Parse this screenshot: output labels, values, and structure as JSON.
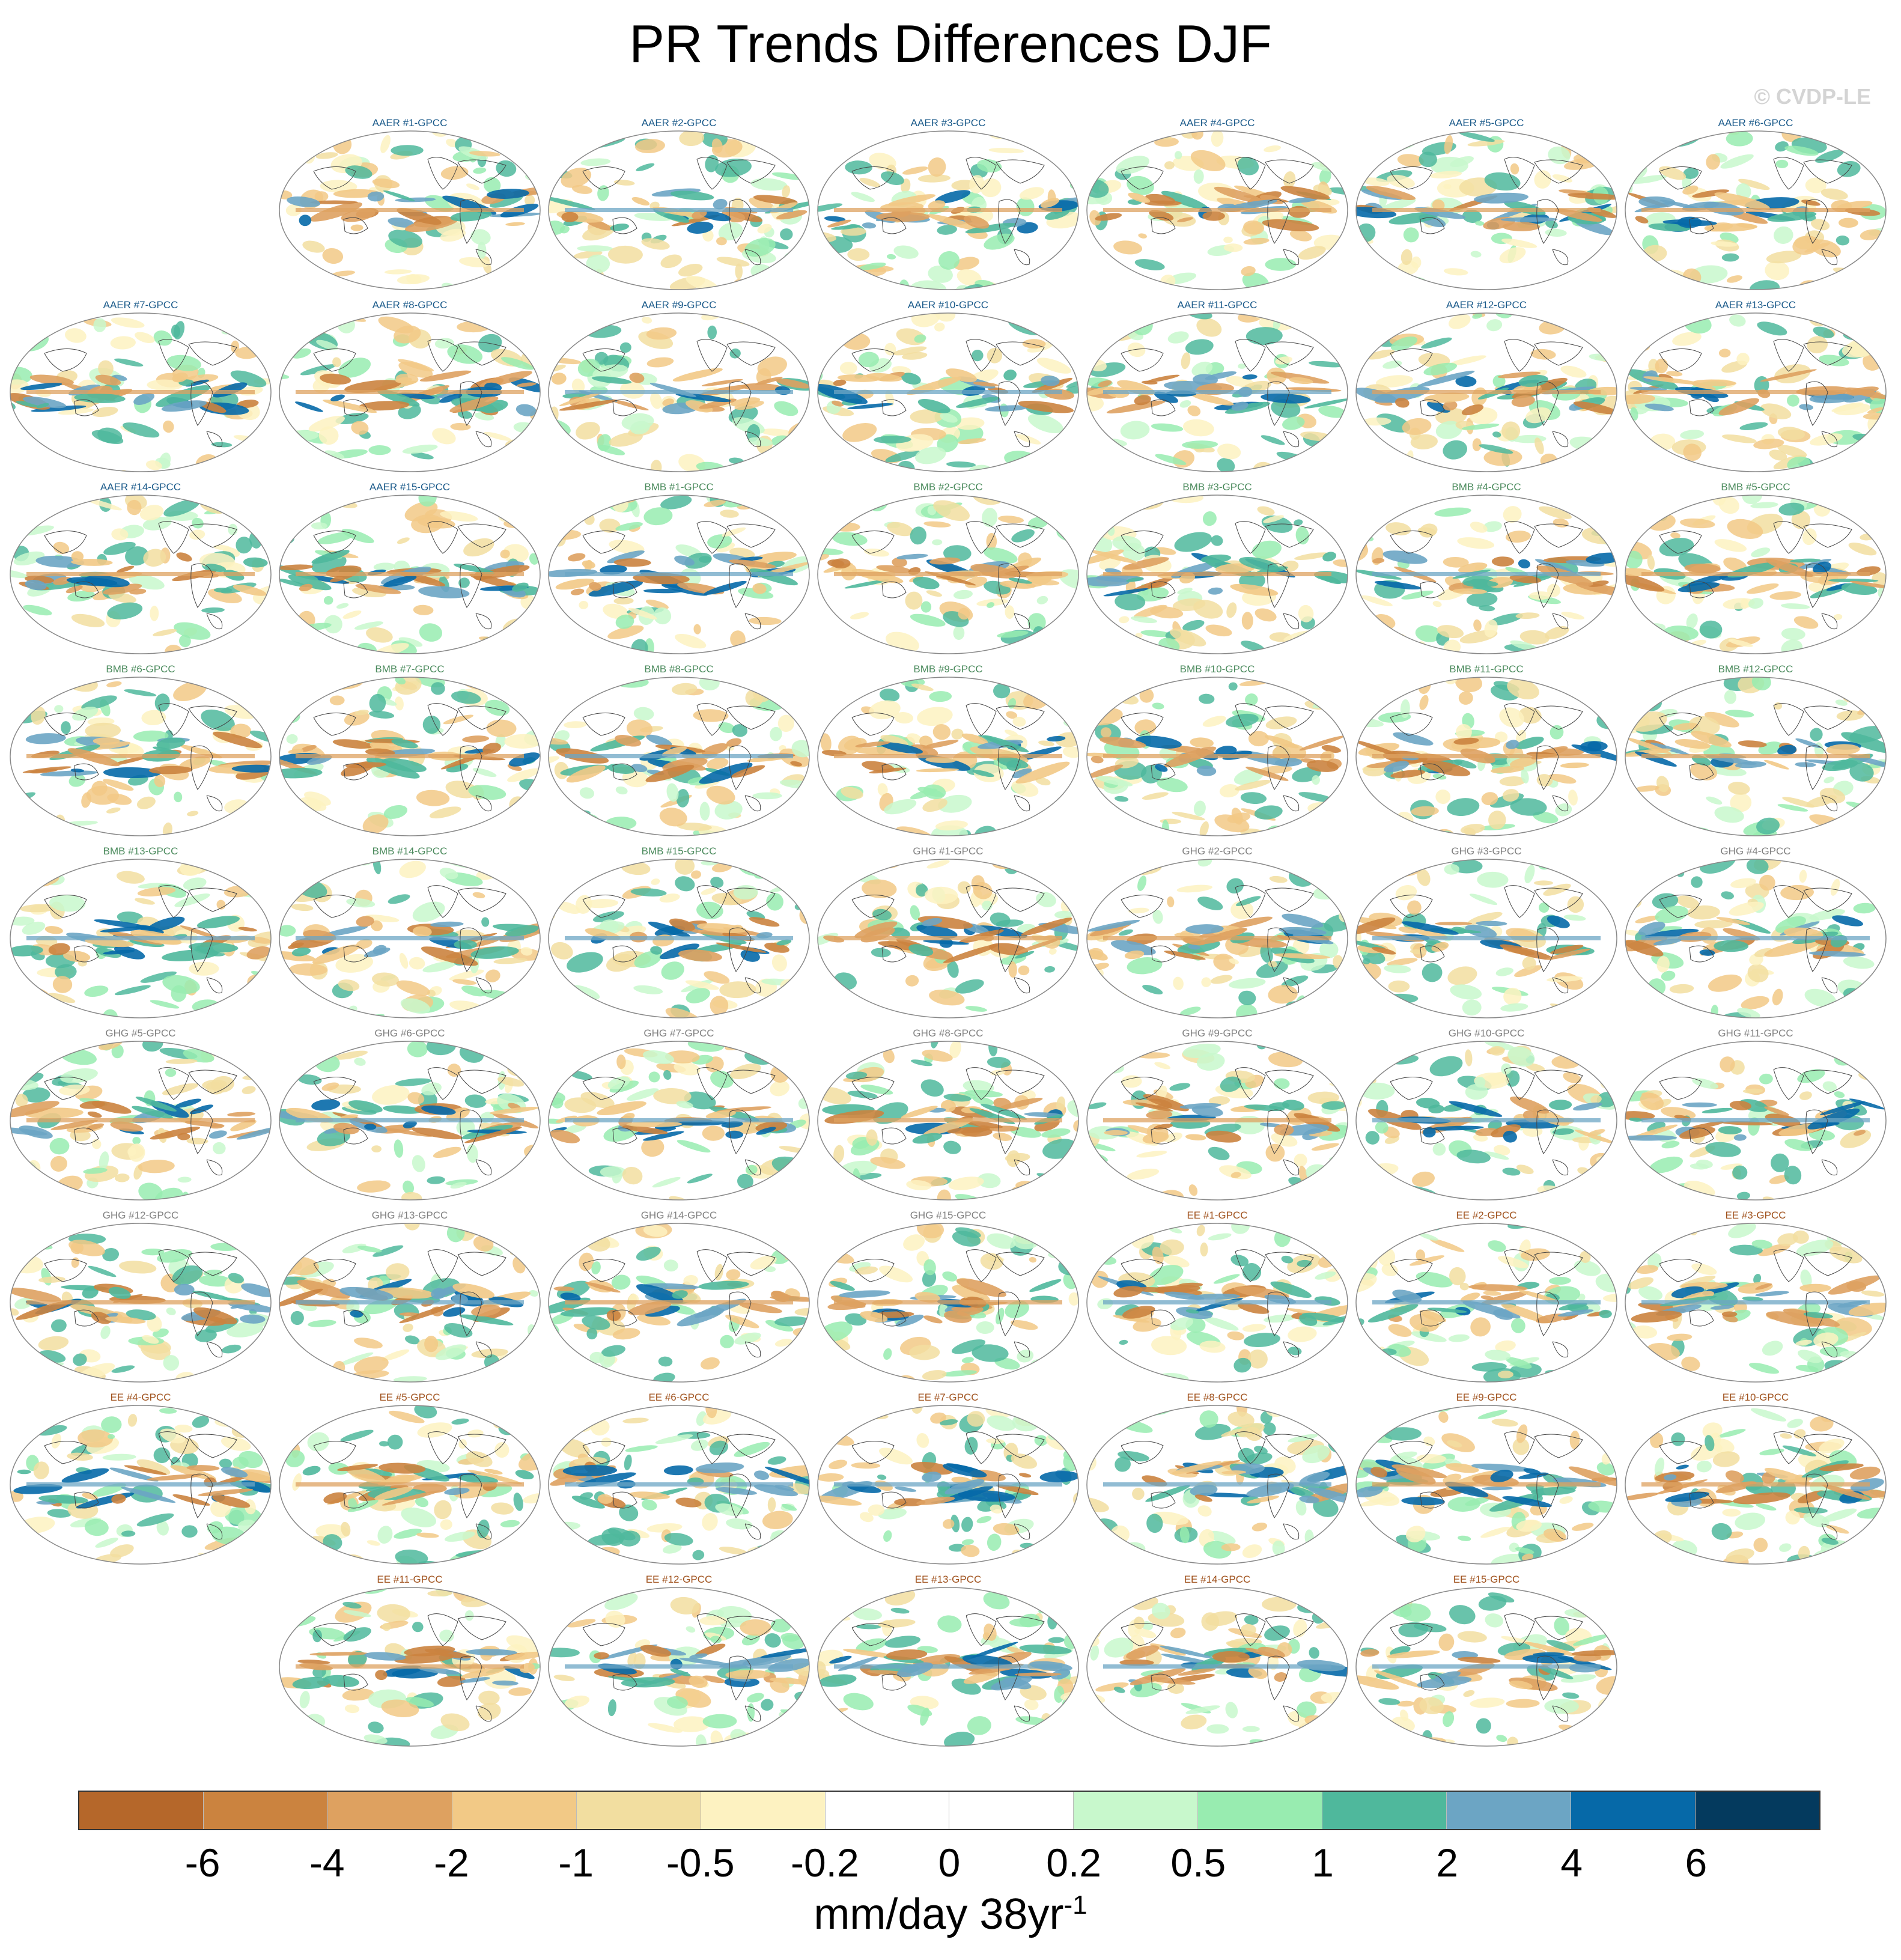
{
  "figure": {
    "title": "PR Trends Differences DJF",
    "copyright": "© CVDP-LE"
  },
  "panel_colors": {
    "AAER": "#1a5a8a",
    "BMB": "#4a8a5c",
    "GHG": "#808080",
    "EE": "#a0521d"
  },
  "panel_rows": [
    [
      "",
      "AAER #1-GPCC",
      "AAER #2-GPCC",
      "AAER #3-GPCC",
      "AAER #4-GPCC",
      "AAER #5-GPCC",
      "AAER #6-GPCC"
    ],
    [
      "AAER #7-GPCC",
      "AAER #8-GPCC",
      "AAER #9-GPCC",
      "AAER #10-GPCC",
      "AAER #11-GPCC",
      "AAER #12-GPCC",
      "AAER #13-GPCC"
    ],
    [
      "AAER #14-GPCC",
      "AAER #15-GPCC",
      "BMB #1-GPCC",
      "BMB #2-GPCC",
      "BMB #3-GPCC",
      "BMB #4-GPCC",
      "BMB #5-GPCC"
    ],
    [
      "BMB #6-GPCC",
      "BMB #7-GPCC",
      "BMB #8-GPCC",
      "BMB #9-GPCC",
      "BMB #10-GPCC",
      "BMB #11-GPCC",
      "BMB #12-GPCC"
    ],
    [
      "BMB #13-GPCC",
      "BMB #14-GPCC",
      "BMB #15-GPCC",
      "GHG #1-GPCC",
      "GHG #2-GPCC",
      "GHG #3-GPCC",
      "GHG #4-GPCC"
    ],
    [
      "GHG #5-GPCC",
      "GHG #6-GPCC",
      "GHG #7-GPCC",
      "GHG #8-GPCC",
      "GHG #9-GPCC",
      "GHG #10-GPCC",
      "GHG #11-GPCC"
    ],
    [
      "GHG #12-GPCC",
      "GHG #13-GPCC",
      "GHG #14-GPCC",
      "GHG #15-GPCC",
      "EE #1-GPCC",
      "EE #2-GPCC",
      "EE #3-GPCC"
    ],
    [
      "EE #4-GPCC",
      "EE #5-GPCC",
      "EE #6-GPCC",
      "EE #7-GPCC",
      "EE #8-GPCC",
      "EE #9-GPCC",
      "EE #10-GPCC"
    ],
    [
      "",
      "EE #11-GPCC",
      "EE #12-GPCC",
      "EE #13-GPCC",
      "EE #14-GPCC",
      "EE #15-GPCC",
      ""
    ]
  ],
  "colorbar": {
    "colors": [
      "#b5672a",
      "#cb833f",
      "#dea160",
      "#f2c986",
      "#f2dea0",
      "#fdf2c1",
      "#ffffff",
      "#ffffff",
      "#c8f8cc",
      "#98ecb0",
      "#4fb89c",
      "#6ca5c4",
      "#0669a8",
      "#043a5e"
    ],
    "tick_labels": [
      "-6",
      "-4",
      "-2",
      "-1",
      "-0.5",
      "-0.2",
      "0",
      "0.2",
      "0.5",
      "1",
      "2",
      "4",
      "6"
    ],
    "unit_base": "mm/day 38yr",
    "unit_exponent": "-1"
  }
}
